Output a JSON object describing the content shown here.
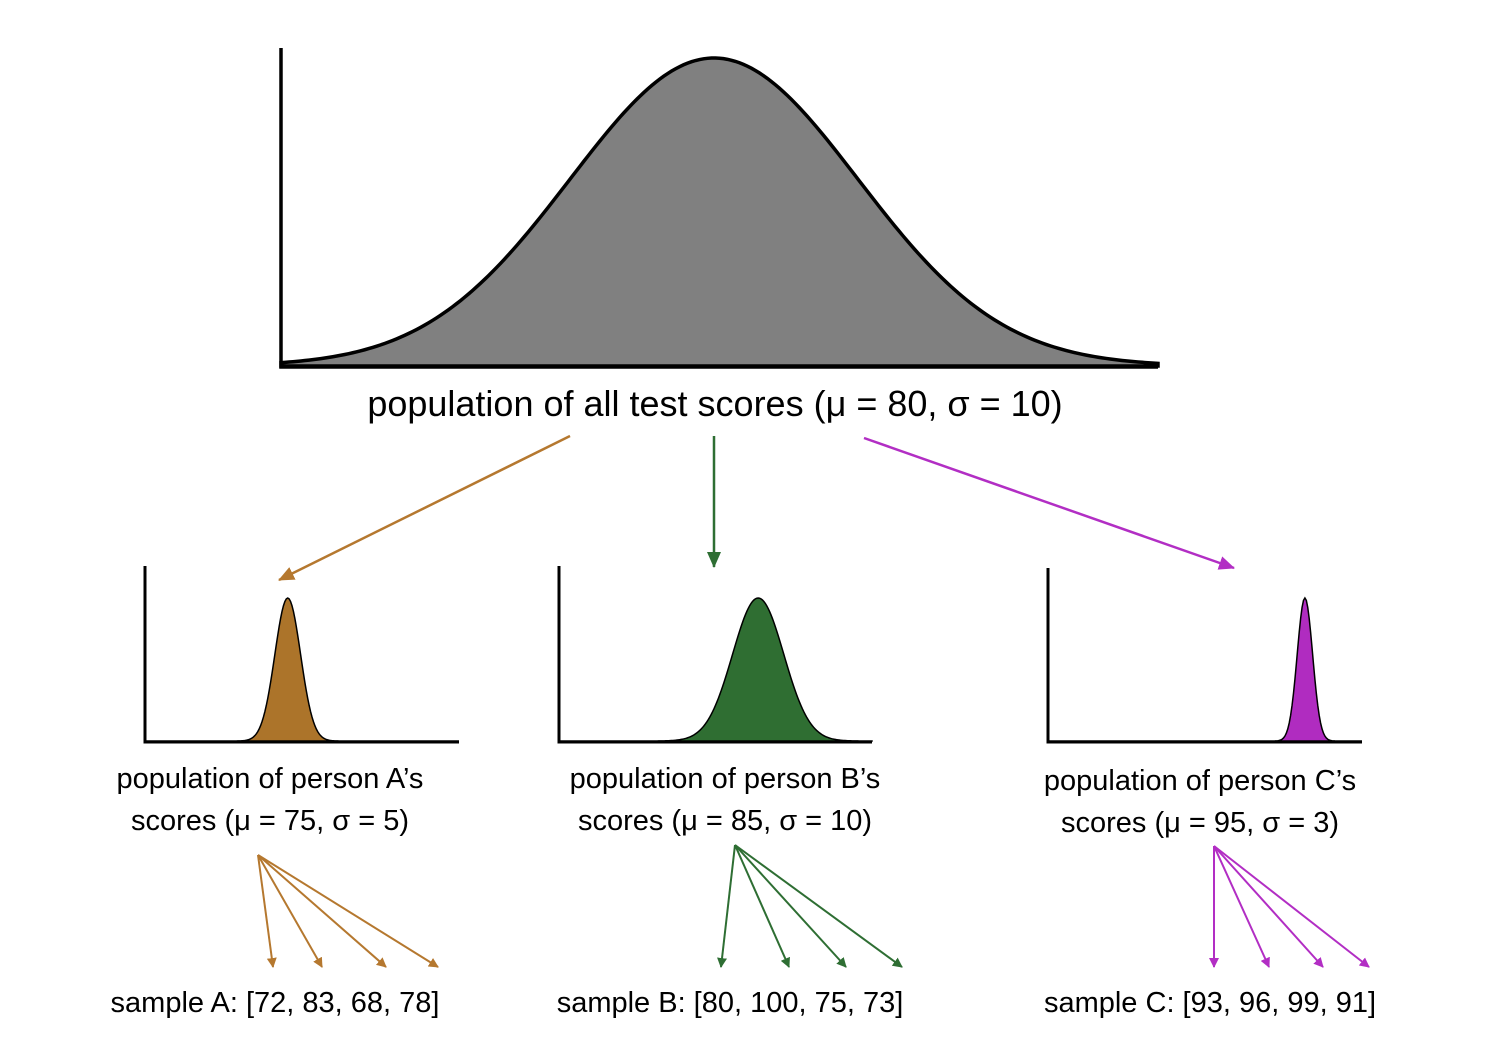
{
  "colors": {
    "population": "#808080",
    "person_a": "#b5782f",
    "person_b": "#2e6e33",
    "person_c": "#b22ec4",
    "fill_a": "#ac742a",
    "fill_b": "#2f6e32",
    "fill_c": "#b02cc0",
    "axis": "#000000"
  },
  "population": {
    "label": "population of all test scores (μ = 80, σ = 10)",
    "mu": 80,
    "sigma": 10
  },
  "persons": [
    {
      "id": "a",
      "label_line1": "population of person A’s",
      "label_line2": "scores (μ = 75, σ = 5)",
      "mu": 75,
      "sigma": 5,
      "sample_label": "sample A: [72, 83, 68, 78]",
      "sample": [
        72,
        83,
        68,
        78
      ]
    },
    {
      "id": "b",
      "label_line1": "population of person B’s",
      "label_line2": "scores (μ = 85, σ = 10)",
      "mu": 85,
      "sigma": 10,
      "sample_label": "sample B: [80, 100, 75, 73]",
      "sample": [
        80,
        100,
        75,
        73
      ]
    },
    {
      "id": "c",
      "label_line1": "population of person C’s",
      "label_line2": "scores (μ = 95, σ = 3)",
      "mu": 95,
      "sigma": 3,
      "sample_label": "sample C: [93, 96, 99, 91]",
      "sample": [
        93,
        96,
        99,
        91
      ]
    }
  ]
}
